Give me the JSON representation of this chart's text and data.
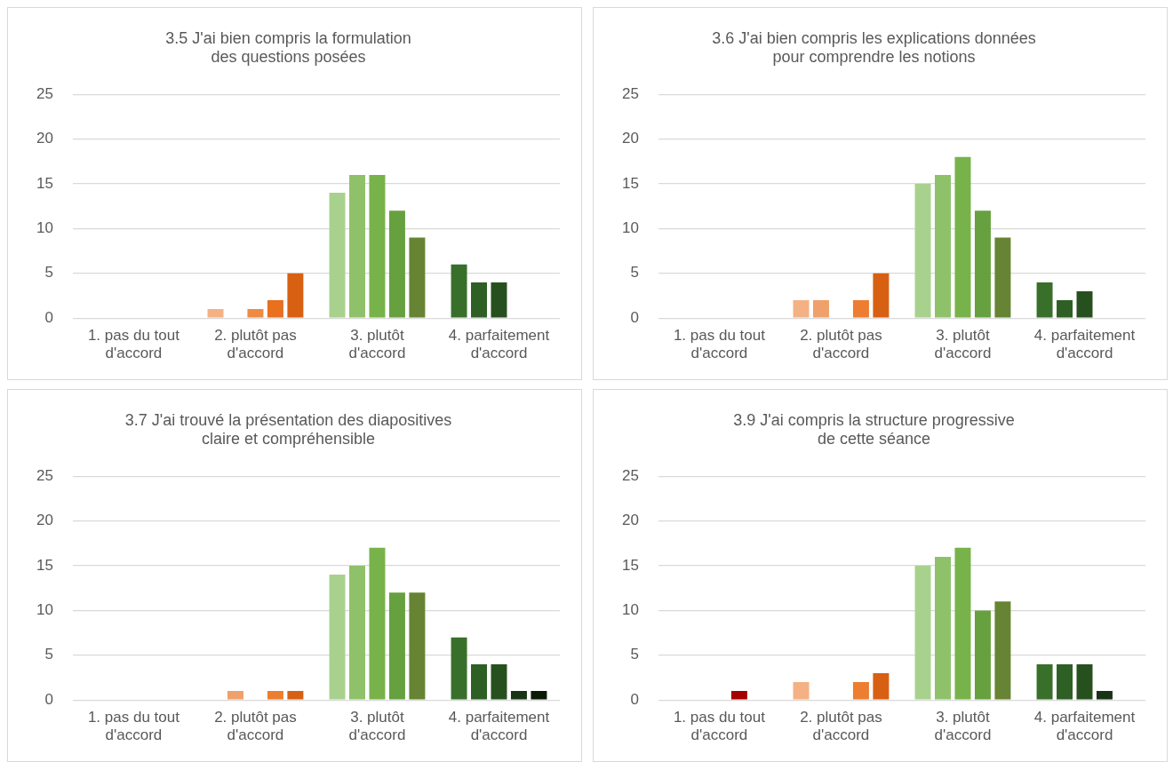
{
  "chart_data": [
    {
      "type": "bar",
      "title": "3.5 J'ai bien compris la formulation\ndes questions posées",
      "categories": [
        "1. pas du tout\nd'accord",
        "2. plutôt pas\nd'accord",
        "3. plutôt\nd'accord",
        "4. parfaitement\nd'accord"
      ],
      "ylim": [
        0,
        25
      ],
      "yticks": [
        0,
        5,
        10,
        15,
        20,
        25
      ],
      "grid": "y",
      "legend": false,
      "series": [
        {
          "colors": [
            "#e8a0a0",
            "#f4b183",
            "#a9d18e",
            "#38702b"
          ],
          "values": [
            0,
            1,
            14,
            6
          ]
        },
        {
          "colors": [
            "#d46a6a",
            "#f0a06a",
            "#8fc16a",
            "#2e5f24"
          ],
          "values": [
            0,
            0,
            16,
            4
          ]
        },
        {
          "colors": [
            "#c03a3a",
            "#ef8a45",
            "#78b24a",
            "#27501f"
          ],
          "values": [
            0,
            1,
            16,
            4
          ]
        },
        {
          "colors": [
            "#a50000",
            "#e8701f",
            "#66a03f",
            "#1a3316"
          ],
          "values": [
            0,
            2,
            12,
            0
          ]
        },
        {
          "colors": [
            "#700000",
            "#d86013",
            "#668433",
            "#0a1a06"
          ],
          "values": [
            0,
            5,
            9,
            0
          ]
        }
      ]
    },
    {
      "type": "bar",
      "title": "3.6 J'ai bien compris les explications données\npour comprendre les notions",
      "categories": [
        "1. pas du tout\nd'accord",
        "2. plutôt pas\nd'accord",
        "3. plutôt\nd'accord",
        "4. parfaitement\nd'accord"
      ],
      "ylim": [
        0,
        25
      ],
      "yticks": [
        0,
        5,
        10,
        15,
        20,
        25
      ],
      "grid": "y",
      "legend": false,
      "series": [
        {
          "colors": [
            "#e8a0a0",
            "#f4b183",
            "#a9d18e",
            "#38702b"
          ],
          "values": [
            0,
            2,
            15,
            4
          ]
        },
        {
          "colors": [
            "#d46a6a",
            "#f0a06a",
            "#8fc16a",
            "#2e5f24"
          ],
          "values": [
            0,
            2,
            16,
            2
          ]
        },
        {
          "colors": [
            "#c03a3a",
            "#ef8a45",
            "#78b24a",
            "#27501f"
          ],
          "values": [
            0,
            0,
            18,
            3
          ]
        },
        {
          "colors": [
            "#a50000",
            "#ed7d31",
            "#66a03f",
            "#1a3316"
          ],
          "values": [
            0,
            2,
            12,
            0
          ]
        },
        {
          "colors": [
            "#700000",
            "#d86013",
            "#668433",
            "#0a1a06"
          ],
          "values": [
            0,
            5,
            9,
            0
          ]
        }
      ]
    },
    {
      "type": "bar",
      "title": "3.7 J'ai trouvé la présentation des diapositives\nclaire et compréhensible",
      "categories": [
        "1. pas du tout\nd'accord",
        "2. plutôt pas\nd'accord",
        "3. plutôt\nd'accord",
        "4. parfaitement\nd'accord"
      ],
      "ylim": [
        0,
        25
      ],
      "yticks": [
        0,
        5,
        10,
        15,
        20,
        25
      ],
      "grid": "y",
      "legend": false,
      "series": [
        {
          "colors": [
            "#e8a0a0",
            "#f4b183",
            "#a9d18e",
            "#38702b"
          ],
          "values": [
            0,
            0,
            14,
            7
          ]
        },
        {
          "colors": [
            "#d46a6a",
            "#f0a06a",
            "#8fc16a",
            "#2e5f24"
          ],
          "values": [
            0,
            1,
            15,
            4
          ]
        },
        {
          "colors": [
            "#c03a3a",
            "#ef8a45",
            "#78b24a",
            "#27501f"
          ],
          "values": [
            0,
            0,
            17,
            4
          ]
        },
        {
          "colors": [
            "#a50000",
            "#ed7d31",
            "#66a03f",
            "#1a3316"
          ],
          "values": [
            0,
            1,
            12,
            1
          ]
        },
        {
          "colors": [
            "#700000",
            "#d86013",
            "#668433",
            "#0a1a06"
          ],
          "values": [
            0,
            1,
            12,
            1
          ]
        }
      ]
    },
    {
      "type": "bar",
      "title": "3.9 J'ai compris la structure progressive\nde cette séance",
      "categories": [
        "1. pas du tout\nd'accord",
        "2. plutôt pas\nd'accord",
        "3. plutôt\nd'accord",
        "4. parfaitement\nd'accord"
      ],
      "ylim": [
        0,
        25
      ],
      "yticks": [
        0,
        5,
        10,
        15,
        20,
        25
      ],
      "grid": "y",
      "legend": false,
      "series": [
        {
          "colors": [
            "#e8a0a0",
            "#f4b183",
            "#a9d18e",
            "#38702b"
          ],
          "values": [
            0,
            2,
            15,
            4
          ]
        },
        {
          "colors": [
            "#d46a6a",
            "#f0a06a",
            "#8fc16a",
            "#2e5f24"
          ],
          "values": [
            0,
            0,
            16,
            4
          ]
        },
        {
          "colors": [
            "#c03a3a",
            "#ef8a45",
            "#78b24a",
            "#27501f"
          ],
          "values": [
            0,
            0,
            17,
            4
          ]
        },
        {
          "colors": [
            "#a50000",
            "#ed7d31",
            "#66a03f",
            "#1a3316"
          ],
          "values": [
            1,
            2,
            10,
            1
          ]
        },
        {
          "colors": [
            "#700000",
            "#d86013",
            "#668433",
            "#0a1a06"
          ],
          "values": [
            0,
            3,
            11,
            0
          ]
        }
      ]
    }
  ]
}
